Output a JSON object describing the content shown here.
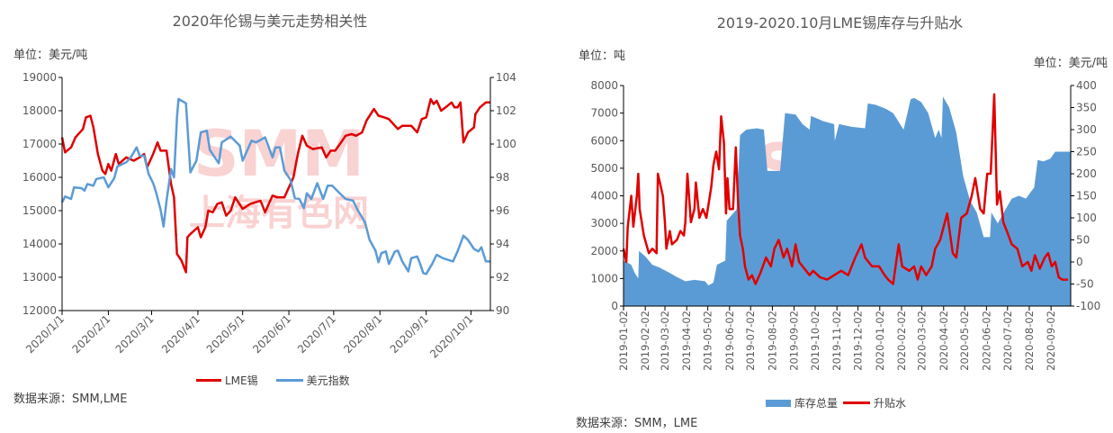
{
  "colors": {
    "tin": "#e00000",
    "usd_index": "#5b9bd5",
    "inventory": "#5b9bd5",
    "spread": "#e00000",
    "watermark": "#f4a6a6"
  },
  "watermark": {
    "logo": "SMM",
    "name": "上海有色网"
  },
  "chart_data": [
    {
      "type": "line",
      "title": "2020年伦锡与美元走势相关性",
      "unit_left": "单位：美元/吨",
      "source": "数据来源：SMM,LME",
      "x_range": [
        "2020-01-01",
        "2020-10-14"
      ],
      "x_ticks": [
        "2020-01-01",
        "2020-02-01",
        "2020-03-01",
        "2020-04-01",
        "2020-05-01",
        "2020-06-01",
        "2020-07-01",
        "2020-08-01",
        "2020-09-01",
        "2020-10-01"
      ],
      "x_tick_labels": [
        "2020/1/1",
        "2020/2/1",
        "2020/3/1",
        "2020/4/1",
        "2020/5/1",
        "2020/6/1",
        "2020/7/1",
        "2020/8/1",
        "2020/9/1",
        "2020/10/1"
      ],
      "y_left": {
        "min": 12000,
        "max": 19000,
        "step": 1000,
        "ticks": [
          "12000",
          "13000",
          "14000",
          "15000",
          "16000",
          "17000",
          "18000",
          "19000"
        ]
      },
      "y_right": {
        "min": 90,
        "max": 104,
        "step": 2,
        "ticks": [
          "90",
          "92",
          "94",
          "96",
          "98",
          "100",
          "102",
          "104"
        ]
      },
      "grid": false,
      "legend": "bottom",
      "series": [
        {
          "name": "LME锡",
          "axis": "left",
          "color": "#e00000",
          "x": [
            "2020-01-01",
            "2020-01-03",
            "2020-01-07",
            "2020-01-10",
            "2020-01-15",
            "2020-01-17",
            "2020-01-20",
            "2020-01-22",
            "2020-01-25",
            "2020-01-28",
            "2020-01-30",
            "2020-02-01",
            "2020-02-03",
            "2020-02-06",
            "2020-02-08",
            "2020-02-13",
            "2020-02-18",
            "2020-02-22",
            "2020-02-25",
            "2020-02-27",
            "2020-03-02",
            "2020-03-05",
            "2020-03-07",
            "2020-03-11",
            "2020-03-14",
            "2020-03-16",
            "2020-03-18",
            "2020-03-21",
            "2020-03-24",
            "2020-03-25",
            "2020-03-27",
            "2020-04-01",
            "2020-04-03",
            "2020-04-06",
            "2020-04-08",
            "2020-04-11",
            "2020-04-14",
            "2020-04-17",
            "2020-04-20",
            "2020-04-23",
            "2020-04-26",
            "2020-05-01",
            "2020-05-06",
            "2020-05-13",
            "2020-05-16",
            "2020-05-21",
            "2020-05-24",
            "2020-05-29",
            "2020-06-01",
            "2020-06-04",
            "2020-06-07",
            "2020-06-10",
            "2020-06-13",
            "2020-06-17",
            "2020-06-23",
            "2020-06-26",
            "2020-06-29",
            "2020-07-02",
            "2020-07-06",
            "2020-07-09",
            "2020-07-13",
            "2020-07-16",
            "2020-07-20",
            "2020-07-23",
            "2020-07-28",
            "2020-07-31",
            "2020-08-04",
            "2020-08-07",
            "2020-08-13",
            "2020-08-16",
            "2020-08-22",
            "2020-08-26",
            "2020-08-29",
            "2020-09-01",
            "2020-09-04",
            "2020-09-06",
            "2020-09-08",
            "2020-09-11",
            "2020-09-14",
            "2020-09-18",
            "2020-09-20",
            "2020-09-22",
            "2020-09-24",
            "2020-09-26",
            "2020-09-29",
            "2020-10-03",
            "2020-10-04",
            "2020-10-07",
            "2020-10-11",
            "2020-10-14"
          ],
          "values": [
            17200,
            16750,
            16900,
            17200,
            17450,
            17800,
            17850,
            17500,
            16700,
            16200,
            16100,
            16400,
            16200,
            16700,
            16400,
            16600,
            16500,
            16600,
            16700,
            16300,
            16700,
            17050,
            16800,
            16800,
            15800,
            15400,
            13700,
            13500,
            13150,
            14200,
            14300,
            14500,
            14200,
            14500,
            15000,
            14950,
            15200,
            15250,
            14850,
            15000,
            15400,
            15050,
            15200,
            15300,
            14950,
            15450,
            15400,
            15400,
            15700,
            16000,
            16700,
            17250,
            16950,
            16850,
            16900,
            16600,
            16800,
            16800,
            17050,
            17250,
            17300,
            17250,
            17350,
            17700,
            18050,
            17850,
            17800,
            17750,
            17450,
            17550,
            17550,
            17350,
            17750,
            17800,
            18350,
            18200,
            18300,
            18000,
            18100,
            18250,
            18100,
            18100,
            18250,
            17050,
            17350,
            17500,
            17900,
            18100,
            18250,
            18250
          ]
        },
        {
          "name": "美元指数",
          "axis": "right",
          "color": "#5b9bd5",
          "x": [
            "2020-01-01",
            "2020-01-03",
            "2020-01-07",
            "2020-01-09",
            "2020-01-14",
            "2020-01-16",
            "2020-01-18",
            "2020-01-22",
            "2020-01-24",
            "2020-01-29",
            "2020-02-01",
            "2020-02-05",
            "2020-02-07",
            "2020-02-13",
            "2020-02-16",
            "2020-02-20",
            "2020-02-22",
            "2020-02-25",
            "2020-02-28",
            "2020-03-02",
            "2020-03-04",
            "2020-03-07",
            "2020-03-09",
            "2020-03-11",
            "2020-03-14",
            "2020-03-16",
            "2020-03-18",
            "2020-03-19",
            "2020-03-24",
            "2020-03-27",
            "2020-03-31",
            "2020-04-03",
            "2020-04-07",
            "2020-04-09",
            "2020-04-15",
            "2020-04-17",
            "2020-04-23",
            "2020-04-29",
            "2020-05-01",
            "2020-05-07",
            "2020-05-10",
            "2020-05-16",
            "2020-05-21",
            "2020-05-23",
            "2020-05-26",
            "2020-05-29",
            "2020-06-02",
            "2020-06-05",
            "2020-06-08",
            "2020-06-11",
            "2020-06-13",
            "2020-06-16",
            "2020-06-20",
            "2020-06-24",
            "2020-06-27",
            "2020-06-30",
            "2020-07-05",
            "2020-07-09",
            "2020-07-14",
            "2020-07-17",
            "2020-07-22",
            "2020-07-25",
            "2020-07-29",
            "2020-07-31",
            "2020-08-02",
            "2020-08-05",
            "2020-08-07",
            "2020-08-11",
            "2020-08-13",
            "2020-08-16",
            "2020-08-20",
            "2020-08-22",
            "2020-08-26",
            "2020-08-28",
            "2020-08-30",
            "2020-09-01",
            "2020-09-05",
            "2020-09-08",
            "2020-09-12",
            "2020-09-19",
            "2020-09-22",
            "2020-09-26",
            "2020-09-29",
            "2020-10-03",
            "2020-10-06",
            "2020-10-08",
            "2020-10-11",
            "2020-10-14"
          ],
          "values": [
            96.5,
            96.85,
            96.7,
            97.4,
            97.35,
            97.2,
            97.6,
            97.5,
            97.9,
            98.0,
            97.4,
            97.95,
            98.65,
            98.9,
            99.2,
            99.8,
            99.3,
            99.3,
            98.2,
            97.65,
            97.1,
            96.05,
            95.05,
            96.6,
            98.5,
            98.0,
            101.6,
            102.7,
            102.45,
            98.3,
            99.0,
            100.7,
            100.8,
            99.65,
            98.85,
            100.1,
            100.45,
            99.9,
            99.0,
            100.2,
            100.1,
            100.4,
            99.2,
            99.8,
            99.8,
            98.4,
            97.85,
            96.75,
            96.7,
            96.15,
            97.05,
            96.7,
            97.65,
            96.7,
            97.5,
            97.5,
            97.05,
            96.7,
            96.6,
            96.05,
            95.3,
            94.25,
            93.6,
            92.9,
            93.45,
            93.55,
            92.8,
            93.55,
            93.6,
            92.95,
            92.35,
            93.15,
            93.25,
            92.8,
            92.25,
            92.2,
            92.8,
            93.35,
            93.15,
            92.95,
            93.55,
            94.5,
            94.25,
            93.7,
            93.55,
            93.8,
            92.95,
            92.95
          ]
        }
      ]
    },
    {
      "type": "area+line",
      "title": "2019-2020.10月LME锡库存与升贴水",
      "unit_left": "单位：吨",
      "unit_right": "单位：美元/吨",
      "source": "数据来源：SMM，LME",
      "x_range": [
        "2019-01-02",
        "2020-09-30"
      ],
      "x_ticks": [
        "2019-01-02",
        "2019-02-02",
        "2019-03-02",
        "2019-04-02",
        "2019-05-02",
        "2019-06-02",
        "2019-07-02",
        "2019-08-02",
        "2019-09-02",
        "2019-10-02",
        "2019-11-02",
        "2019-12-02",
        "2020-01-02",
        "2020-02-02",
        "2020-03-02",
        "2020-04-02",
        "2020-05-02",
        "2020-06-02",
        "2020-07-02",
        "2020-08-02",
        "2020-09-02"
      ],
      "x_tick_labels": [
        "2019-01-02",
        "2019-02-02",
        "2019-03-02",
        "2019-04-02",
        "2019-05-02",
        "2019-06-02",
        "2019-07-02",
        "2019-08-02",
        "2019-09-02",
        "2019-10-02",
        "2019-11-02",
        "2019-12-02",
        "2020-01-02",
        "2020-02-02",
        "2020-03-02",
        "2020-04-02",
        "2020-05-02",
        "2020-06-02",
        "2020-07-02",
        "2020-08-02",
        "2020-09-02"
      ],
      "y_left": {
        "min": 0,
        "max": 8000,
        "step": 1000,
        "ticks": [
          "0",
          "1000",
          "2000",
          "3000",
          "4000",
          "5000",
          "6000",
          "7000",
          "8000"
        ]
      },
      "y_right": {
        "min": -100,
        "max": 400,
        "step": 50,
        "ticks": [
          "-100",
          "-50",
          "0",
          "50",
          "100",
          "150",
          "200",
          "250",
          "300",
          "350",
          "400"
        ]
      },
      "grid": false,
      "legend": "bottom",
      "series": [
        {
          "name": "库存总量",
          "type": "area",
          "axis": "left",
          "color": "#5b9bd5",
          "x": [
            "2019-01-02",
            "2019-01-13",
            "2019-01-18",
            "2019-01-23",
            "2019-01-24",
            "2019-02-02",
            "2019-02-12",
            "2019-02-22",
            "2019-03-09",
            "2019-03-19",
            "2019-03-31",
            "2019-04-13",
            "2019-04-28",
            "2019-05-03",
            "2019-05-10",
            "2019-05-15",
            "2019-05-27",
            "2019-05-29",
            "2019-06-12",
            "2019-06-17",
            "2019-06-26",
            "2019-07-11",
            "2019-07-21",
            "2019-07-26",
            "2019-08-13",
            "2019-08-20",
            "2019-09-04",
            "2019-09-14",
            "2019-09-24",
            "2019-09-26",
            "2019-10-14",
            "2019-10-29",
            "2019-10-30",
            "2019-11-05",
            "2019-11-23",
            "2019-12-12",
            "2019-12-16",
            "2019-12-27",
            "2020-01-11",
            "2020-01-21",
            "2020-02-05",
            "2020-02-15",
            "2020-02-20",
            "2020-03-01",
            "2020-03-11",
            "2020-03-21",
            "2020-03-26",
            "2020-03-30",
            "2020-04-01",
            "2020-04-10",
            "2020-04-20",
            "2020-04-30",
            "2020-05-10",
            "2020-05-19",
            "2020-05-29",
            "2020-06-07",
            "2020-06-09",
            "2020-06-18",
            "2020-06-29",
            "2020-07-08",
            "2020-07-18",
            "2020-07-28",
            "2020-08-09",
            "2020-08-14",
            "2020-08-22",
            "2020-09-01",
            "2020-09-08",
            "2020-09-30"
          ],
          "values": [
            1650,
            1500,
            1200,
            1000,
            2000,
            1800,
            1500,
            1400,
            1200,
            1050,
            900,
            950,
            900,
            750,
            850,
            1500,
            1650,
            3100,
            3500,
            6200,
            6400,
            6450,
            6400,
            4900,
            4900,
            7000,
            6950,
            6600,
            6400,
            6900,
            6700,
            6600,
            6000,
            6600,
            6500,
            6450,
            7350,
            7300,
            7150,
            7000,
            6400,
            7500,
            7550,
            7400,
            7000,
            6100,
            6400,
            6100,
            7600,
            7200,
            6300,
            4700,
            3800,
            3400,
            2500,
            2500,
            3400,
            3000,
            3500,
            3900,
            4000,
            3900,
            4300,
            5300,
            5250,
            5350,
            5600,
            5600
          ]
        },
        {
          "name": "升贴水",
          "type": "line",
          "axis": "right",
          "color": "#e00000",
          "x": [
            "2019-01-02",
            "2019-01-06",
            "2019-01-08",
            "2019-01-13",
            "2019-01-16",
            "2019-01-21",
            "2019-01-23",
            "2019-01-25",
            "2019-01-31",
            "2019-02-07",
            "2019-02-12",
            "2019-02-18",
            "2019-02-20",
            "2019-02-27",
            "2019-03-02",
            "2019-03-04",
            "2019-03-09",
            "2019-03-12",
            "2019-03-19",
            "2019-03-24",
            "2019-03-29",
            "2019-03-31",
            "2019-04-03",
            "2019-04-08",
            "2019-04-13",
            "2019-04-15",
            "2019-04-20",
            "2019-04-25",
            "2019-04-30",
            "2019-05-07",
            "2019-05-10",
            "2019-05-14",
            "2019-05-18",
            "2019-05-21",
            "2019-05-25",
            "2019-05-28",
            "2019-05-30",
            "2019-06-02",
            "2019-06-07",
            "2019-06-11",
            "2019-06-14",
            "2019-06-17",
            "2019-06-21",
            "2019-06-24",
            "2019-06-29",
            "2019-07-04",
            "2019-07-09",
            "2019-07-16",
            "2019-07-24",
            "2019-07-31",
            "2019-08-05",
            "2019-08-11",
            "2019-08-18",
            "2019-08-23",
            "2019-08-30",
            "2019-09-04",
            "2019-09-09",
            "2019-09-19",
            "2019-09-24",
            "2019-09-29",
            "2019-10-09",
            "2019-10-19",
            "2019-10-29",
            "2019-11-08",
            "2019-11-18",
            "2019-11-28",
            "2019-12-07",
            "2019-12-12",
            "2019-12-22",
            "2020-01-01",
            "2020-01-09",
            "2020-01-14",
            "2020-01-21",
            "2020-01-29",
            "2020-02-03",
            "2020-02-13",
            "2020-02-20",
            "2020-02-25",
            "2020-03-01",
            "2020-03-08",
            "2020-03-16",
            "2020-03-21",
            "2020-03-28",
            "2020-04-07",
            "2020-04-15",
            "2020-04-20",
            "2020-04-27",
            "2020-05-05",
            "2020-05-12",
            "2020-05-17",
            "2020-05-24",
            "2020-05-29",
            "2020-06-03",
            "2020-06-08",
            "2020-06-13",
            "2020-06-17",
            "2020-06-21",
            "2020-06-26",
            "2020-07-01",
            "2020-07-08",
            "2020-07-16",
            "2020-07-23",
            "2020-07-31",
            "2020-08-05",
            "2020-08-10",
            "2020-08-17",
            "2020-08-24",
            "2020-08-29",
            "2020-09-03",
            "2020-09-08",
            "2020-09-13",
            "2020-09-18",
            "2020-09-26"
          ],
          "values": [
            30,
            0,
            80,
            150,
            80,
            150,
            200,
            120,
            60,
            20,
            30,
            20,
            200,
            150,
            90,
            30,
            70,
            40,
            50,
            70,
            60,
            90,
            200,
            90,
            120,
            180,
            100,
            120,
            100,
            170,
            220,
            250,
            210,
            330,
            270,
            110,
            190,
            120,
            120,
            260,
            140,
            60,
            30,
            -10,
            -40,
            -30,
            -50,
            -25,
            10,
            -10,
            30,
            50,
            10,
            30,
            -10,
            40,
            0,
            -20,
            -30,
            -20,
            -35,
            -40,
            -30,
            -20,
            -30,
            10,
            40,
            10,
            -10,
            -10,
            -30,
            -40,
            -50,
            40,
            -10,
            -20,
            -10,
            -40,
            -10,
            -30,
            -10,
            30,
            50,
            110,
            20,
            10,
            100,
            110,
            150,
            190,
            120,
            110,
            200,
            200,
            380,
            130,
            160,
            90,
            70,
            40,
            30,
            -10,
            0,
            -20,
            15,
            -15,
            10,
            20,
            -10,
            0,
            -35,
            -40,
            -40
          ]
        }
      ]
    }
  ]
}
